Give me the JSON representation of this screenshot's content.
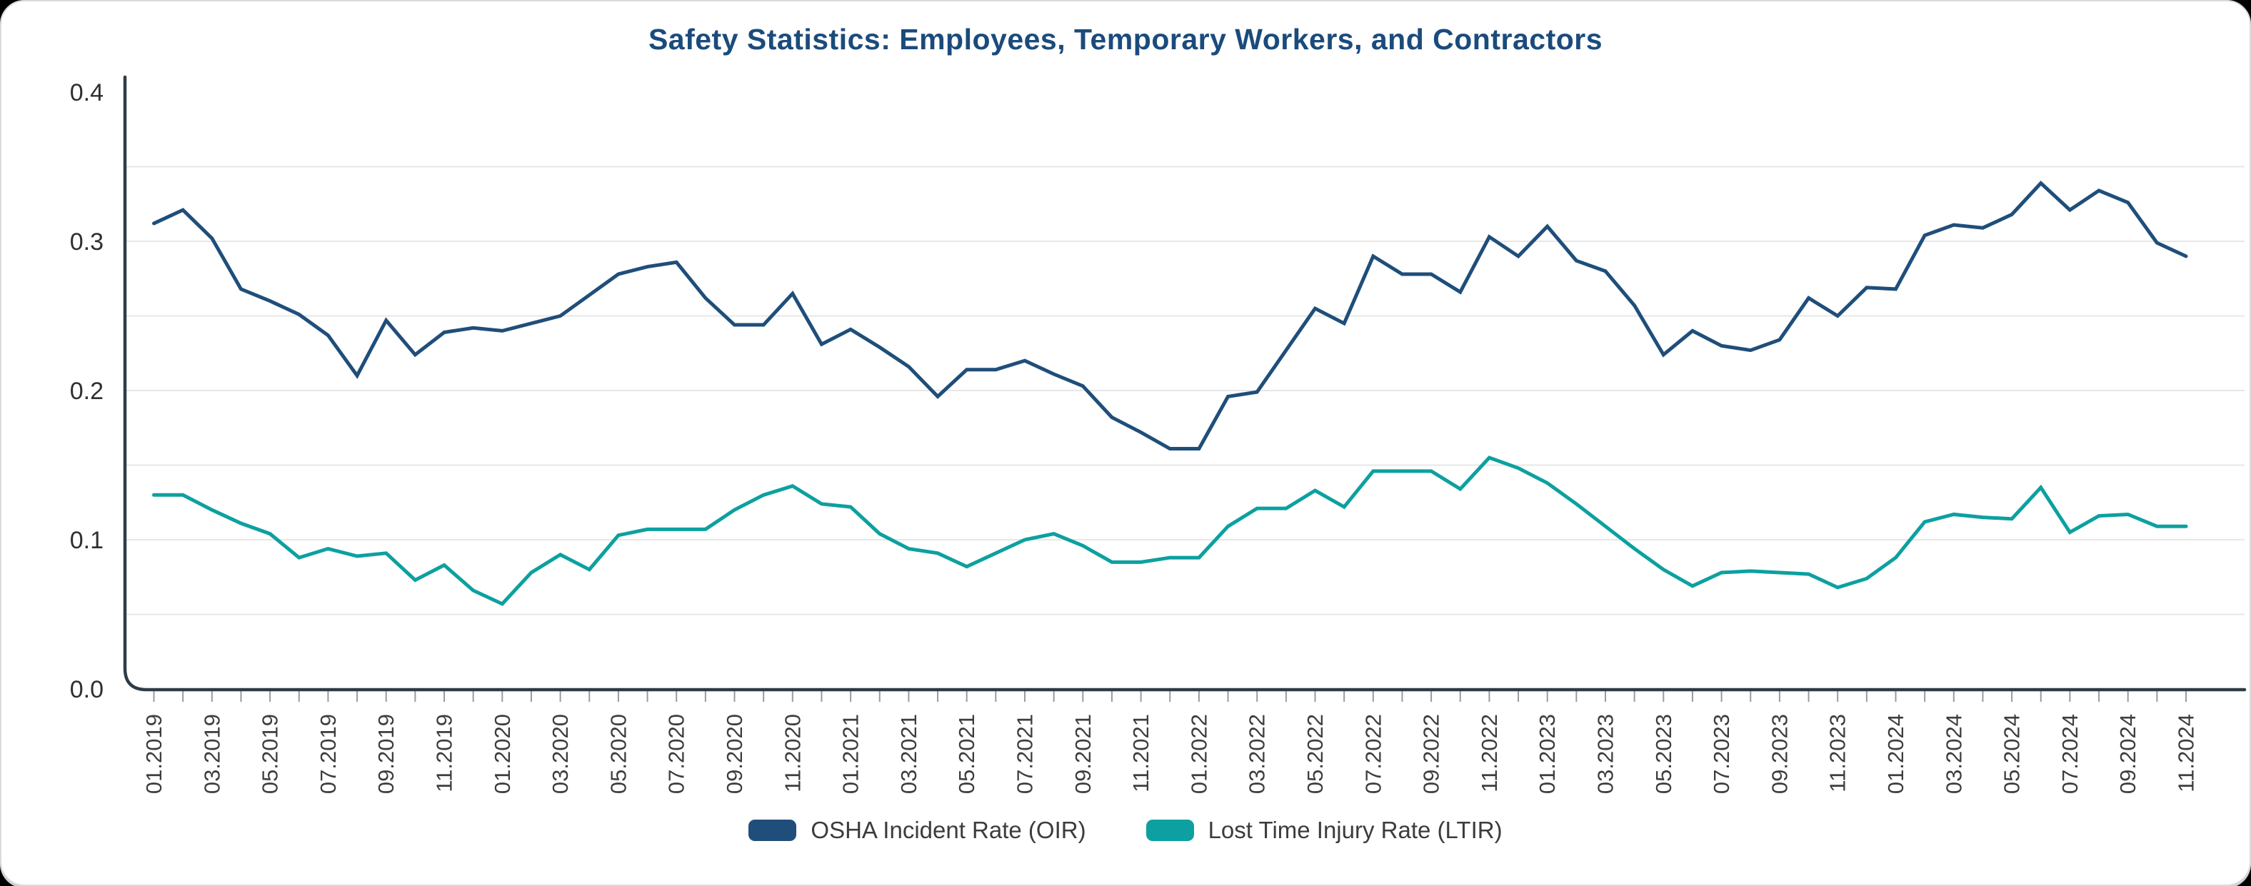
{
  "window": {
    "background": "#000000",
    "card_color": "#ffffff",
    "card_border_color": "#dbdbdb"
  },
  "title": "Safety Statistics: Employees, Temporary Workers, and Contractors",
  "title_color": "#1B4B7C",
  "legend": {
    "position": "bottom",
    "items": [
      {
        "label": "OSHA Incident Rate (OIR)",
        "color": "#1F4E7A"
      },
      {
        "label": "Lost Time Injury Rate (LTIR)",
        "color": "#0DA0A0"
      }
    ]
  },
  "chart_data": {
    "type": "line",
    "title": "Safety Statistics: Employees, Temporary Workers, and Contractors",
    "xlabel": "",
    "ylabel": "",
    "ylim": [
      0.0,
      0.4
    ],
    "yticks": [
      0.0,
      0.1,
      0.2,
      0.3,
      0.4
    ],
    "ytick_labels": [
      "0.0",
      "0.1",
      "0.2",
      "0.3",
      "0.4"
    ],
    "grid": {
      "show": true,
      "interval": 0.05,
      "color": "#E7E7E7"
    },
    "axis_color": "#2E3C46",
    "tick_color": "#9B9B9B",
    "xtick_label_color": "#3D3D3D",
    "ytick_label_color": "#2F2F2F",
    "x_tick_label_every": 2,
    "x_tick_label_rotation": -90,
    "legend_position": "bottom",
    "x": [
      "01.2019",
      "02.2019",
      "03.2019",
      "04.2019",
      "05.2019",
      "06.2019",
      "07.2019",
      "08.2019",
      "09.2019",
      "10.2019",
      "11.2019",
      "12.2019",
      "01.2020",
      "02.2020",
      "03.2020",
      "04.2020",
      "05.2020",
      "06.2020",
      "07.2020",
      "08.2020",
      "09.2020",
      "10.2020",
      "11.2020",
      "12.2020",
      "01.2021",
      "02.2021",
      "03.2021",
      "04.2021",
      "05.2021",
      "06.2021",
      "07.2021",
      "08.2021",
      "09.2021",
      "10.2021",
      "11.2021",
      "12.2021",
      "01.2022",
      "02.2022",
      "03.2022",
      "04.2022",
      "05.2022",
      "06.2022",
      "07.2022",
      "08.2022",
      "09.2022",
      "10.2022",
      "11.2022",
      "12.2022",
      "01.2023",
      "02.2023",
      "03.2023",
      "04.2023",
      "05.2023",
      "06.2023",
      "07.2023",
      "08.2023",
      "09.2023",
      "10.2023",
      "11.2023",
      "12.2023",
      "01.2024",
      "02.2024",
      "03.2024",
      "04.2024",
      "05.2024",
      "06.2024",
      "07.2024",
      "08.2024",
      "09.2024",
      "10.2024",
      "11.2024"
    ],
    "series": [
      {
        "name": "OSHA Incident Rate (OIR)",
        "color": "#1F4E7A",
        "values": [
          0.312,
          0.321,
          0.302,
          0.268,
          0.26,
          0.251,
          0.237,
          0.21,
          0.247,
          0.224,
          0.239,
          0.242,
          0.24,
          0.245,
          0.25,
          0.264,
          0.278,
          0.283,
          0.286,
          0.262,
          0.244,
          0.244,
          0.265,
          0.231,
          0.241,
          0.229,
          0.216,
          0.196,
          0.214,
          0.214,
          0.22,
          0.211,
          0.203,
          0.182,
          0.172,
          0.161,
          0.161,
          0.196,
          0.199,
          0.227,
          0.255,
          0.245,
          0.29,
          0.278,
          0.278,
          0.266,
          0.303,
          0.29,
          0.31,
          0.287,
          0.28,
          0.257,
          0.224,
          0.24,
          0.23,
          0.227,
          0.234,
          0.262,
          0.25,
          0.269,
          0.268,
          0.304,
          0.311,
          0.309,
          0.318,
          0.339,
          0.321,
          0.334,
          0.326,
          0.299,
          0.29
        ]
      },
      {
        "name": "Lost Time Injury Rate (LTIR)",
        "color": "#0DA0A0",
        "values": [
          0.13,
          0.13,
          0.12,
          0.111,
          0.104,
          0.088,
          0.094,
          0.089,
          0.091,
          0.073,
          0.083,
          0.066,
          0.057,
          0.078,
          0.09,
          0.08,
          0.103,
          0.107,
          0.107,
          0.107,
          0.12,
          0.13,
          0.136,
          0.124,
          0.122,
          0.104,
          0.094,
          0.091,
          0.082,
          0.091,
          0.1,
          0.104,
          0.096,
          0.085,
          0.085,
          0.088,
          0.088,
          0.109,
          0.121,
          0.121,
          0.133,
          0.122,
          0.146,
          0.146,
          0.146,
          0.134,
          0.155,
          0.148,
          0.138,
          0.124,
          0.109,
          0.094,
          0.08,
          0.069,
          0.078,
          0.079,
          0.078,
          0.077,
          0.068,
          0.074,
          0.088,
          0.112,
          0.117,
          0.115,
          0.114,
          0.135,
          0.105,
          0.116,
          0.117,
          0.109,
          0.109
        ]
      }
    ]
  }
}
